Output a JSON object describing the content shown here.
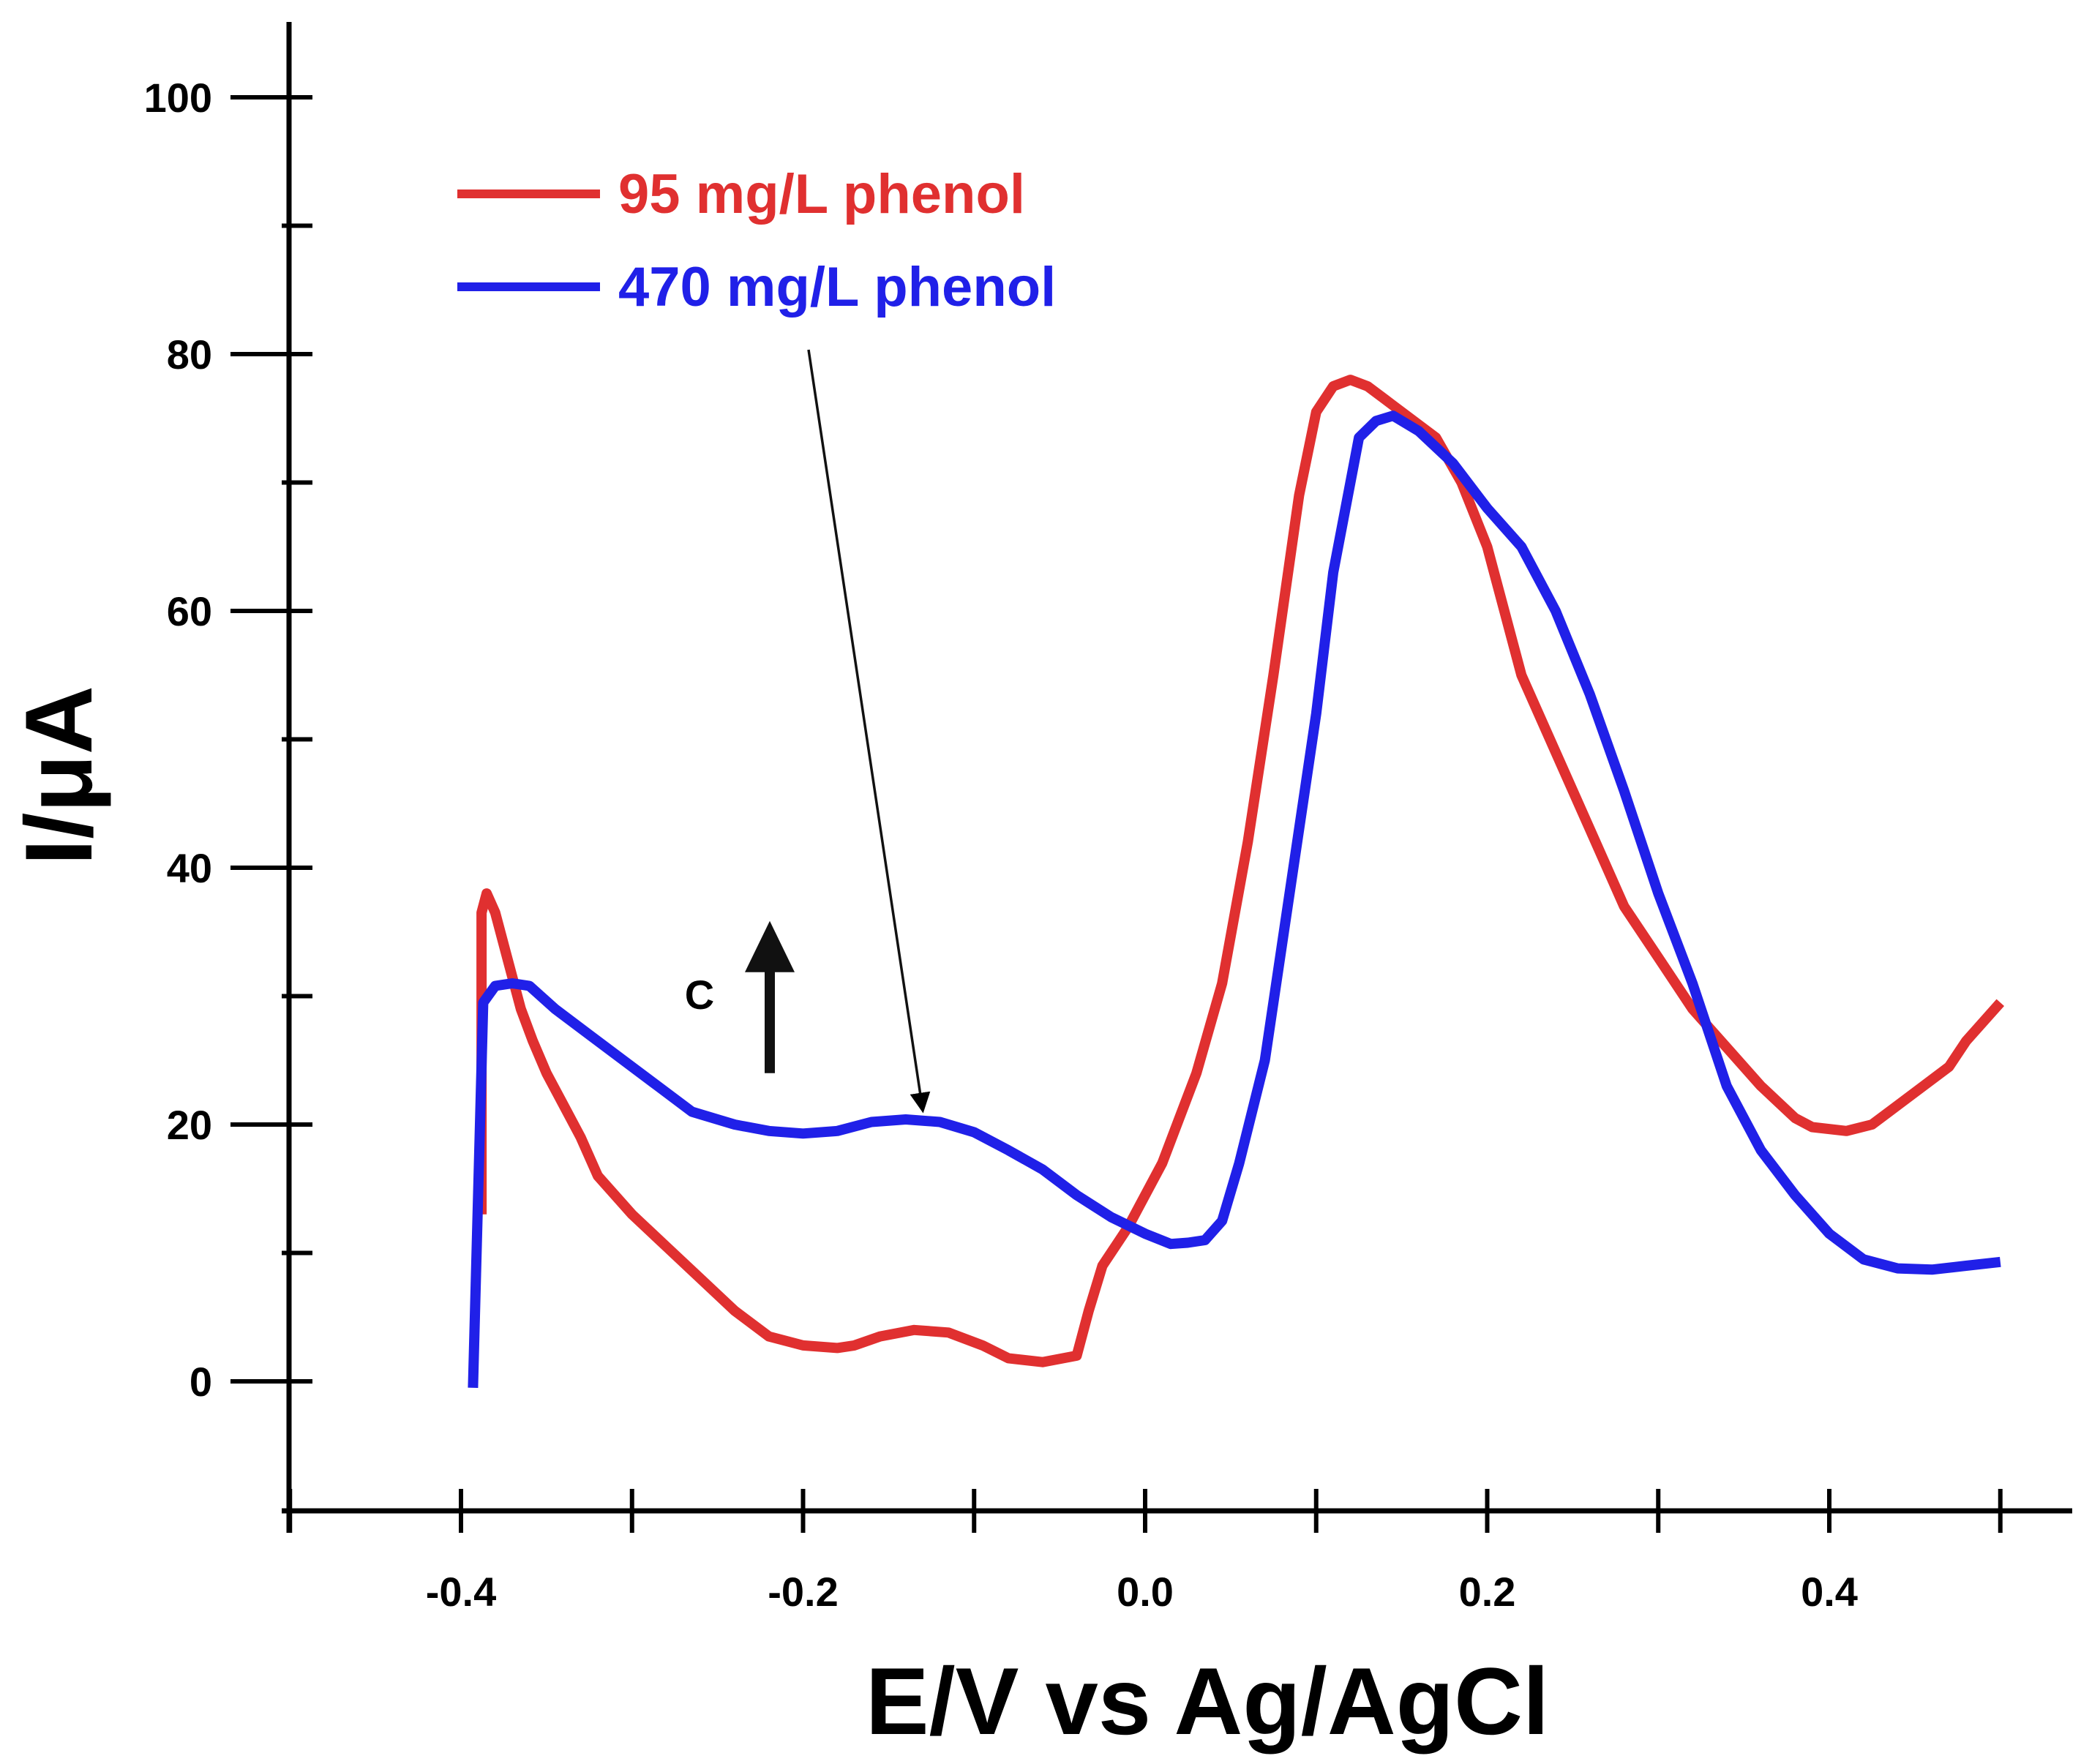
{
  "chart_data": {
    "type": "line",
    "title": "",
    "xlabel": "E/V vs Ag/AgCl",
    "ylabel": "I/μA",
    "xlim": [
      -0.5,
      0.55
    ],
    "ylim": [
      -10,
      105
    ],
    "x_ticks": [
      -0.4,
      -0.2,
      0.0,
      0.2,
      0.4
    ],
    "x_tick_labels": [
      "-0.4",
      "-0.2",
      "0.0",
      "0.2",
      "0.4"
    ],
    "x_minor_ticks": [
      -0.5,
      -0.3,
      -0.1,
      0.1,
      0.3,
      0.5
    ],
    "y_ticks": [
      0,
      20,
      40,
      60,
      80,
      100
    ],
    "y_tick_labels": [
      "0",
      "20",
      "40",
      "60",
      "80",
      "100"
    ],
    "y_minor_ticks": [
      10,
      30,
      50,
      70,
      90
    ],
    "grid": false,
    "legend_position": "top-left",
    "series": [
      {
        "name": "95 mg/L phenol",
        "color": "#e03030",
        "x": [
          -0.388,
          -0.388,
          -0.385,
          -0.38,
          -0.373,
          -0.365,
          -0.358,
          -0.35,
          -0.34,
          -0.33,
          -0.32,
          -0.3,
          -0.28,
          -0.26,
          -0.24,
          -0.22,
          -0.2,
          -0.18,
          -0.17,
          -0.155,
          -0.135,
          -0.115,
          -0.095,
          -0.08,
          -0.06,
          -0.04,
          -0.033,
          -0.025,
          -0.01,
          0.01,
          0.03,
          0.045,
          0.06,
          0.075,
          0.09,
          0.1,
          0.11,
          0.12,
          0.13,
          0.14,
          0.15,
          0.17,
          0.185,
          0.2,
          0.21,
          0.22,
          0.24,
          0.26,
          0.28,
          0.3,
          0.32,
          0.34,
          0.36,
          0.38,
          0.39,
          0.41,
          0.425,
          0.44,
          0.455,
          0.47,
          0.48,
          0.5
        ],
        "y": [
          13,
          36.5,
          38,
          36.5,
          33,
          29,
          26.5,
          24,
          21.5,
          19,
          16,
          13,
          10.5,
          8,
          5.5,
          3.5,
          2.8,
          2.6,
          2.8,
          3.5,
          4.0,
          3.8,
          2.8,
          1.8,
          1.5,
          2.0,
          5.5,
          9.0,
          12,
          17,
          24,
          31,
          42,
          55,
          69,
          75.5,
          77.5,
          78.0,
          77.5,
          76.5,
          75.5,
          73.5,
          70,
          65,
          60,
          55,
          49,
          43,
          37,
          33,
          29,
          26,
          23,
          20.5,
          19.8,
          19.5,
          20.0,
          21.5,
          23,
          24.5,
          26.5,
          29.5
        ]
      },
      {
        "name": "470 mg/L phenol",
        "color": "#2020e8",
        "x": [
          -0.393,
          -0.387,
          -0.38,
          -0.37,
          -0.36,
          -0.345,
          -0.325,
          -0.305,
          -0.285,
          -0.265,
          -0.24,
          -0.22,
          -0.2,
          -0.18,
          -0.16,
          -0.14,
          -0.12,
          -0.1,
          -0.08,
          -0.06,
          -0.04,
          -0.02,
          0.0,
          0.015,
          0.025,
          0.035,
          0.045,
          0.055,
          0.07,
          0.09,
          0.1,
          0.11,
          0.12,
          0.125,
          0.135,
          0.145,
          0.16,
          0.18,
          0.2,
          0.22,
          0.24,
          0.26,
          0.28,
          0.3,
          0.32,
          0.34,
          0.36,
          0.38,
          0.4,
          0.42,
          0.44,
          0.46,
          0.48,
          0.5
        ],
        "y": [
          -0.5,
          29.5,
          30.8,
          31.0,
          30.8,
          29.0,
          27.0,
          25.0,
          23.0,
          21.0,
          20.0,
          19.5,
          19.3,
          19.5,
          20.2,
          20.4,
          20.2,
          19.4,
          18.0,
          16.5,
          14.5,
          12.8,
          11.5,
          10.7,
          10.8,
          11.0,
          12.5,
          17.0,
          25.0,
          43.0,
          52.0,
          63.0,
          70.0,
          73.5,
          74.8,
          75.2,
          74.0,
          71.5,
          68.0,
          65.0,
          60.0,
          53.5,
          46.0,
          38.0,
          31.0,
          23.0,
          18.0,
          14.5,
          11.5,
          9.5,
          8.8,
          8.7,
          9.0,
          9.3
        ]
      }
    ],
    "annotations": [
      {
        "text": "C",
        "type": "arrow-up",
        "x": -0.22,
        "y_from": 24,
        "y_to": 35
      },
      {
        "type": "pointer",
        "from_legend": "470 mg/L phenol",
        "x_from": -0.197,
        "y_from": 80,
        "x_to": -0.13,
        "y_to": 20.4
      }
    ]
  }
}
